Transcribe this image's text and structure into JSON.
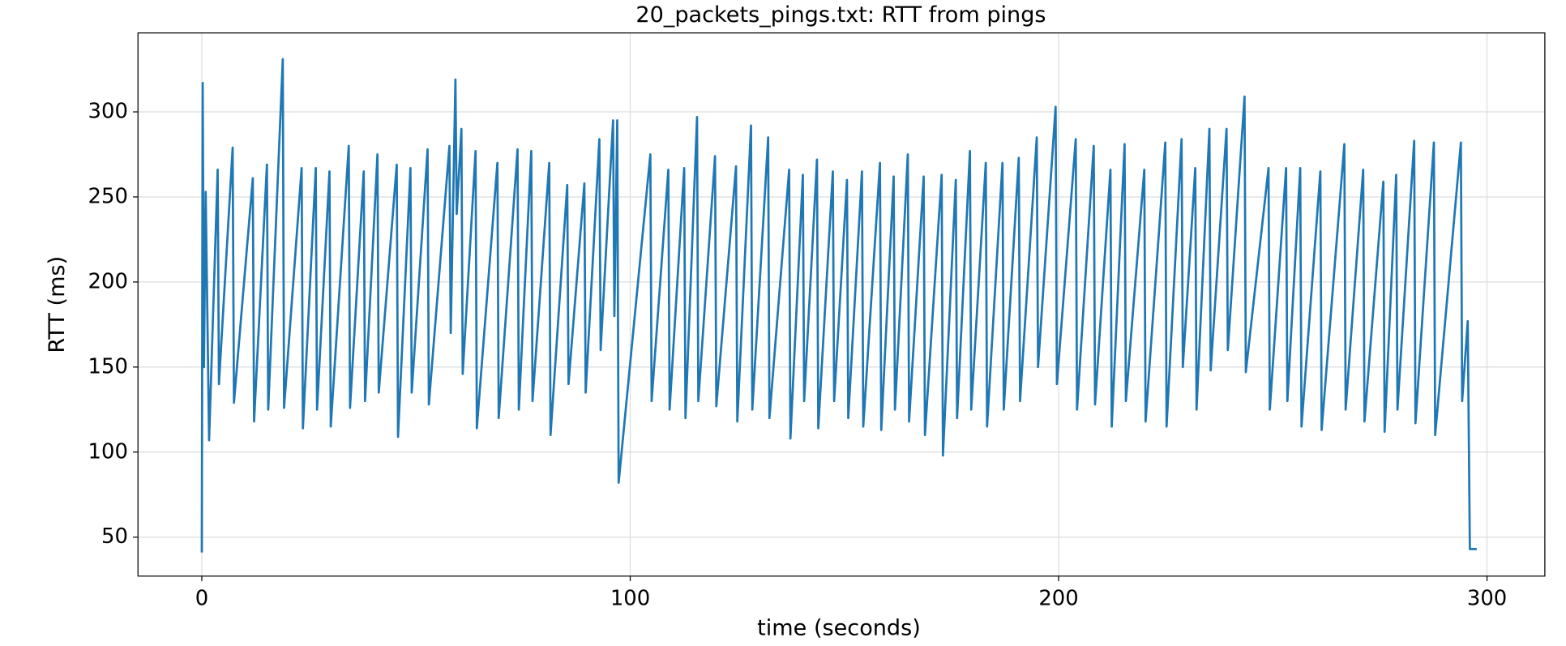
{
  "chart_data": {
    "type": "line",
    "title": "20_packets_pings.txt: RTT from pings",
    "x_label": "time (seconds)",
    "y_label": "RTT (ms)",
    "color": "#1f77b4",
    "grid": true,
    "xlim": [
      -14.9,
      313.5
    ],
    "ylim": [
      27.1,
      346.4
    ],
    "xticks": [
      0,
      100,
      200,
      300
    ],
    "yticks": [
      50,
      100,
      150,
      200,
      250,
      300
    ],
    "x": [
      0,
      0.2,
      0.5,
      0.9,
      1.7,
      3.7,
      4.0,
      7.2,
      7.5,
      11.9,
      12.2,
      15.2,
      15.5,
      18.9,
      19.2,
      23.3,
      23.6,
      26.6,
      26.9,
      29.8,
      30.1,
      34.3,
      34.6,
      37.8,
      38.1,
      41.0,
      41.3,
      45.5,
      45.8,
      48.7,
      49.0,
      52.7,
      53.0,
      57.8,
      58.1,
      59.2,
      59.5,
      60.6,
      60.9,
      63.9,
      64.2,
      69.0,
      69.3,
      73.7,
      74.0,
      76.9,
      77.2,
      81.1,
      81.4,
      85.3,
      85.6,
      89.3,
      89.6,
      92.8,
      93.1,
      96.0,
      96.3,
      96.97,
      97.3,
      104.7,
      105.0,
      108.9,
      109.2,
      112.6,
      112.9,
      115.6,
      115.9,
      119.8,
      120.1,
      124.7,
      125.0,
      128.2,
      128.5,
      132.2,
      132.5,
      137.1,
      137.4,
      140.3,
      140.6,
      143.6,
      143.9,
      147.3,
      147.6,
      150.6,
      150.9,
      154.1,
      154.4,
      158.3,
      158.6,
      161.5,
      161.8,
      164.8,
      165.1,
      168.5,
      168.8,
      172.7,
      173.0,
      176.0,
      176.3,
      179.3,
      179.6,
      183.0,
      183.3,
      186.9,
      187.2,
      190.7,
      191.0,
      194.9,
      195.2,
      199.3,
      199.6,
      204.0,
      204.3,
      208.2,
      208.5,
      212.1,
      212.4,
      215.4,
      215.7,
      220.0,
      220.3,
      224.9,
      225.2,
      228.7,
      229.0,
      231.9,
      232.2,
      235.2,
      235.5,
      239.2,
      239.5,
      243.4,
      243.7,
      249.0,
      249.3,
      253.1,
      253.4,
      256.4,
      256.7,
      261.1,
      261.4,
      266.7,
      267.0,
      271.1,
      271.4,
      275.8,
      276.1,
      278.8,
      279.1,
      283.0,
      283.3,
      287.6,
      287.9,
      293.9,
      294.2,
      295.5,
      296.0,
      297.6
    ],
    "values": [
      41,
      317,
      150,
      253,
      107,
      266,
      140,
      279,
      129,
      261,
      118,
      269,
      125,
      331,
      126,
      267,
      114,
      267,
      125,
      265,
      115,
      280,
      126,
      265,
      130,
      275,
      135,
      269,
      109,
      267,
      135,
      278,
      128,
      280,
      170,
      319,
      240,
      290,
      146,
      277,
      114,
      270,
      120,
      278,
      125,
      277,
      130,
      270,
      110,
      257,
      140,
      258,
      135,
      284,
      160,
      295,
      180,
      295,
      82,
      275,
      130,
      266,
      125,
      267,
      120,
      297,
      130,
      274,
      127,
      268,
      118,
      292,
      125,
      285,
      120,
      266,
      108,
      263,
      130,
      272,
      114,
      265,
      130,
      260,
      120,
      265,
      115,
      270,
      113,
      262,
      125,
      275,
      118,
      262,
      110,
      263,
      98,
      260,
      120,
      277,
      125,
      270,
      115,
      270,
      125,
      273,
      130,
      285,
      150,
      303,
      140,
      284,
      125,
      280,
      128,
      266,
      115,
      281,
      130,
      266,
      118,
      282,
      115,
      284,
      150,
      267,
      125,
      290,
      148,
      290,
      160,
      309,
      147,
      267,
      125,
      267,
      130,
      267,
      115,
      265,
      113,
      281,
      125,
      266,
      118,
      259,
      112,
      263,
      125,
      283,
      117,
      282,
      110,
      282,
      130,
      177,
      43,
      43
    ]
  }
}
